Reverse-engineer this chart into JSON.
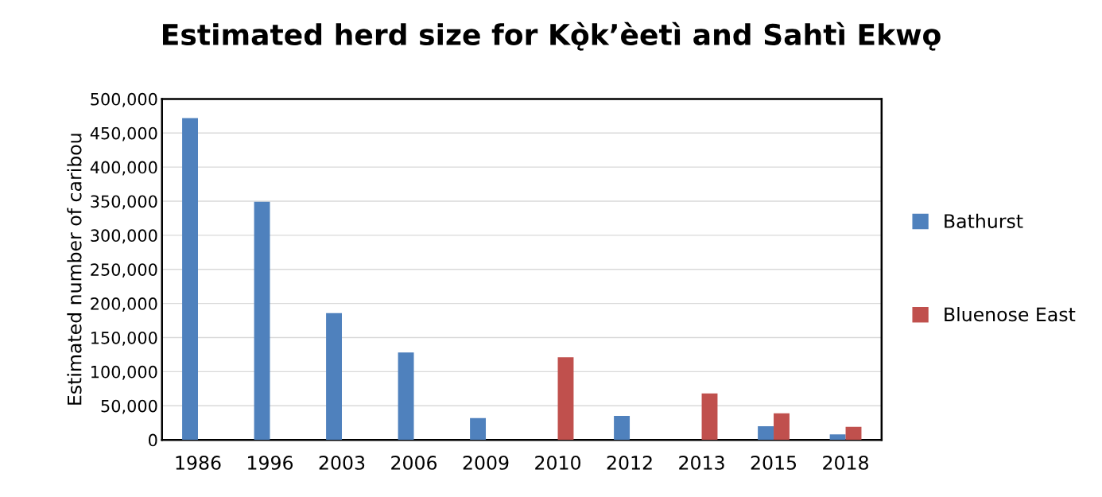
{
  "chart_data": {
    "type": "bar",
    "title": "Estimated herd size for Kǫ̀k’èetì and Sahtì Ekwǫ",
    "ylabel": "Estimated number of caribou",
    "categories": [
      "1986",
      "1996",
      "2003",
      "2006",
      "2009",
      "2010",
      "2012",
      "2013",
      "2015",
      "2018"
    ],
    "series": [
      {
        "name": "Bathurst",
        "color": "#4f81bd",
        "values": [
          472000,
          349000,
          186000,
          128000,
          32000,
          null,
          35000,
          null,
          20000,
          8000
        ]
      },
      {
        "name": "Bluenose East",
        "color": "#c0504d",
        "values": [
          null,
          null,
          null,
          null,
          null,
          121000,
          null,
          68000,
          39000,
          19000
        ]
      }
    ],
    "ylim": [
      0,
      500000
    ],
    "yticks": [
      0,
      {
        "value": 50000,
        "label": "50,000"
      },
      {
        "value": 100000,
        "label": "100,000"
      },
      {
        "value": 150000,
        "label": "150,000"
      },
      {
        "value": 200000,
        "label": "200,000"
      },
      {
        "value": 250000,
        "label": "250,000"
      },
      {
        "value": 300000,
        "label": "300,000"
      },
      {
        "value": 350000,
        "label": "350,000"
      },
      {
        "value": 400000,
        "label": "400,000"
      },
      {
        "value": 450000,
        "label": "450,000"
      },
      {
        "value": 500000,
        "label": "500,000"
      }
    ],
    "grid": "y",
    "legend": "right"
  }
}
